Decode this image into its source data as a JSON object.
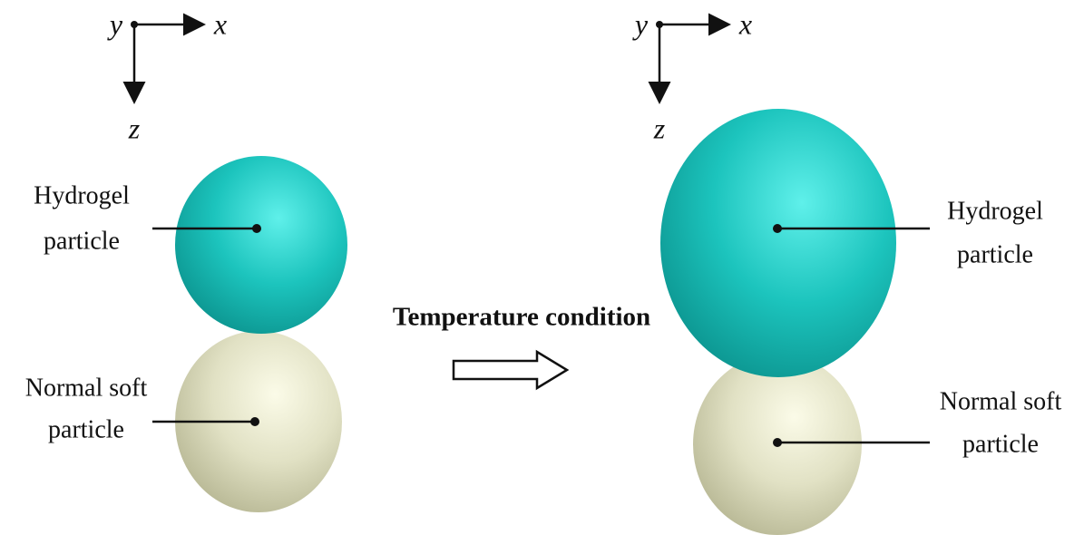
{
  "panels": [
    {
      "axes": {
        "y": "y",
        "x": "x",
        "z": "z"
      },
      "labels": [
        {
          "lines": [
            "Hydrogel",
            "particle"
          ]
        },
        {
          "lines": [
            "Normal soft",
            "particle"
          ]
        }
      ]
    },
    {
      "axes": {
        "y": "y",
        "x": "x",
        "z": "z"
      },
      "labels": [
        {
          "lines": [
            "Hydrogel",
            "particle"
          ]
        },
        {
          "lines": [
            "Normal soft",
            "particle"
          ]
        }
      ]
    }
  ],
  "transition": {
    "label": "Temperature condition"
  }
}
